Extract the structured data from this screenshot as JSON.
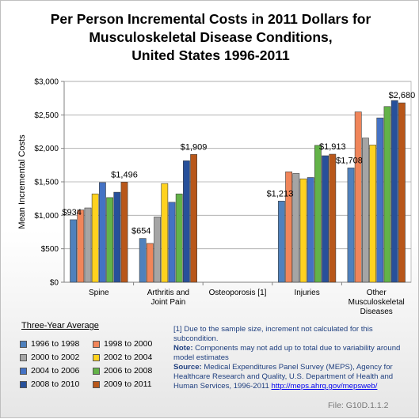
{
  "title_lines": [
    "Per Person Incremental Costs in 2011 Dollars for",
    "Musculoskeletal Disease Conditions,",
    "United States 1996-2011"
  ],
  "chart_data": {
    "type": "bar",
    "title": "Per Person Incremental Costs in 2011 Dollars for Musculoskeletal Disease Conditions, United States 1996-2011",
    "ylabel": "Mean Incremental Costs",
    "xlabel": "",
    "ylim": [
      0,
      3000
    ],
    "yticks": [
      0,
      500,
      1000,
      1500,
      2000,
      2500,
      3000
    ],
    "ytick_labels": [
      "$0",
      "$500",
      "$1,000",
      "$1,500",
      "$2,000",
      "$2,500",
      "$3,000"
    ],
    "grid": true,
    "legend_title": "Three-Year Average",
    "legend_position": "bottom-left",
    "categories": [
      [
        "Spine"
      ],
      [
        "Arthritis and",
        "Joint Pain"
      ],
      [
        "Osteoporosis [1]"
      ],
      [
        "Injuries"
      ],
      [
        "Other",
        "Musculoskeletal",
        "Diseases"
      ]
    ],
    "series": [
      {
        "name": "1996 to 1998",
        "color": "#4f81bd",
        "values": [
          934,
          654,
          null,
          1213,
          1708
        ]
      },
      {
        "name": "1998 to 2000",
        "color": "#f0855a",
        "values": [
          1080,
          580,
          null,
          1650,
          2545
        ]
      },
      {
        "name": "2000 to 2002",
        "color": "#a5a5a5",
        "values": [
          1110,
          975,
          null,
          1625,
          2155
        ]
      },
      {
        "name": "2002 to 2004",
        "color": "#ffd21f",
        "values": [
          1320,
          1475,
          null,
          1545,
          2050
        ]
      },
      {
        "name": "2004 to 2006",
        "color": "#4472c4",
        "values": [
          1490,
          1195,
          null,
          1565,
          2455
        ]
      },
      {
        "name": "2006 to 2008",
        "color": "#63b348",
        "values": [
          1265,
          1320,
          null,
          2045,
          2625
        ]
      },
      {
        "name": "2008 to 2010",
        "color": "#27509a",
        "values": [
          1345,
          1815,
          null,
          1890,
          2715
        ]
      },
      {
        "name": "2009 to 2011",
        "color": "#b8571a",
        "values": [
          1496,
          1909,
          null,
          1913,
          2680
        ]
      }
    ],
    "data_labels": [
      {
        "category": 0,
        "series": 0,
        "text": "$934"
      },
      {
        "category": 0,
        "series": 7,
        "text": "$1,496"
      },
      {
        "category": 1,
        "series": 0,
        "text": "$654"
      },
      {
        "category": 1,
        "series": 7,
        "text": "$1,909"
      },
      {
        "category": 3,
        "series": 0,
        "text": "$1,213"
      },
      {
        "category": 3,
        "series": 7,
        "text": "$1,913"
      },
      {
        "category": 4,
        "series": 0,
        "text": "$1,708"
      },
      {
        "category": 4,
        "series": 7,
        "text": "$2,680"
      }
    ]
  },
  "notes": {
    "footnote": "[1] Due to the sample size, increment not calculated for this subcondition.",
    "note_label": "Note:",
    "note_text": " Components may not add up to total due to variability around model estimates",
    "source_label": "Source:",
    "source_text": " Medical Expenditures Panel Survey (MEPS), Agency for Healthcare Research and Quality, U.S. Department of Health and Human Services, 1996-2011 ",
    "source_link": "http://meps.ahrq.gov/mepsweb/"
  },
  "file_label": "File: G10D.1.1.2"
}
